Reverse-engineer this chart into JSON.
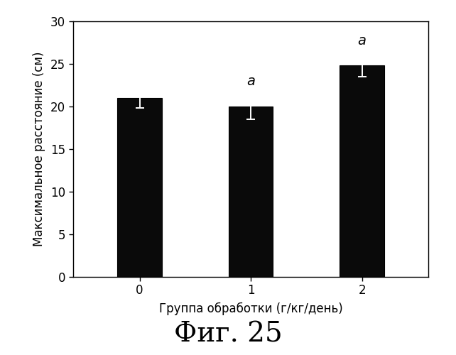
{
  "categories": [
    "0",
    "1",
    "2"
  ],
  "values": [
    21.0,
    20.0,
    24.8
  ],
  "errors": [
    1.2,
    1.5,
    1.3
  ],
  "bar_color": "#0a0a0a",
  "bar_edgecolor": "#000000",
  "bar_width": 0.4,
  "xlabel": "Группа обработки (г/кг/день)",
  "ylabel": "Максимальное расстояние (см)",
  "ylim": [
    0,
    30
  ],
  "yticks": [
    0,
    5,
    10,
    15,
    20,
    25,
    30
  ],
  "title_fig": "Фиг. 25",
  "annotations": [
    null,
    "a",
    "a"
  ],
  "annotation_offsets": [
    0,
    0.7,
    0.8
  ],
  "errorbar_color": "#ffffff",
  "errorbar_linewidth": 1.4,
  "errorbar_capsize": 4,
  "xlabel_fontsize": 12,
  "ylabel_fontsize": 12,
  "tick_fontsize": 12,
  "annot_fontsize": 14,
  "title_fontsize": 28,
  "background_color": "#ffffff",
  "axes_linewidth": 1.0,
  "figsize": [
    5.5,
    4.2
  ]
}
